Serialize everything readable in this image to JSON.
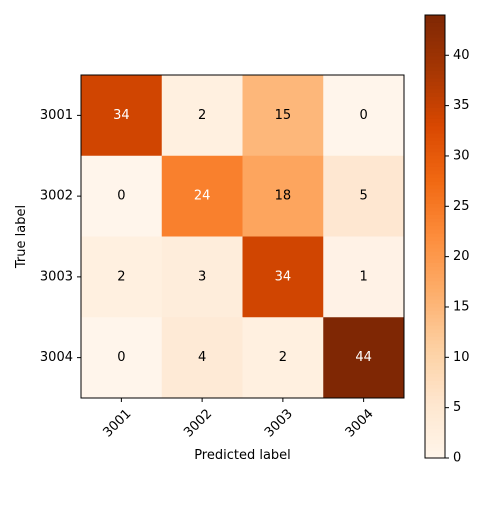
{
  "chart_data": {
    "type": "heatmap",
    "title": "",
    "xlabel": "Predicted label",
    "ylabel": "True label",
    "categories_x": [
      "3001",
      "3002",
      "3003",
      "3004"
    ],
    "categories_y": [
      "3001",
      "3002",
      "3003",
      "3004"
    ],
    "matrix": [
      [
        34,
        2,
        15,
        0
      ],
      [
        0,
        24,
        18,
        5
      ],
      [
        2,
        3,
        34,
        1
      ],
      [
        0,
        4,
        2,
        44
      ]
    ],
    "colormap": "Oranges",
    "colorbar": {
      "range": [
        0,
        44
      ],
      "ticks": [
        0,
        5,
        10,
        15,
        20,
        25,
        30,
        35,
        40
      ],
      "tick_labels": [
        "0",
        "5",
        "10",
        "15",
        "20",
        "25",
        "30",
        "35",
        "40"
      ]
    },
    "text_color_dark": "#000000",
    "text_color_light": "#ffffff"
  }
}
